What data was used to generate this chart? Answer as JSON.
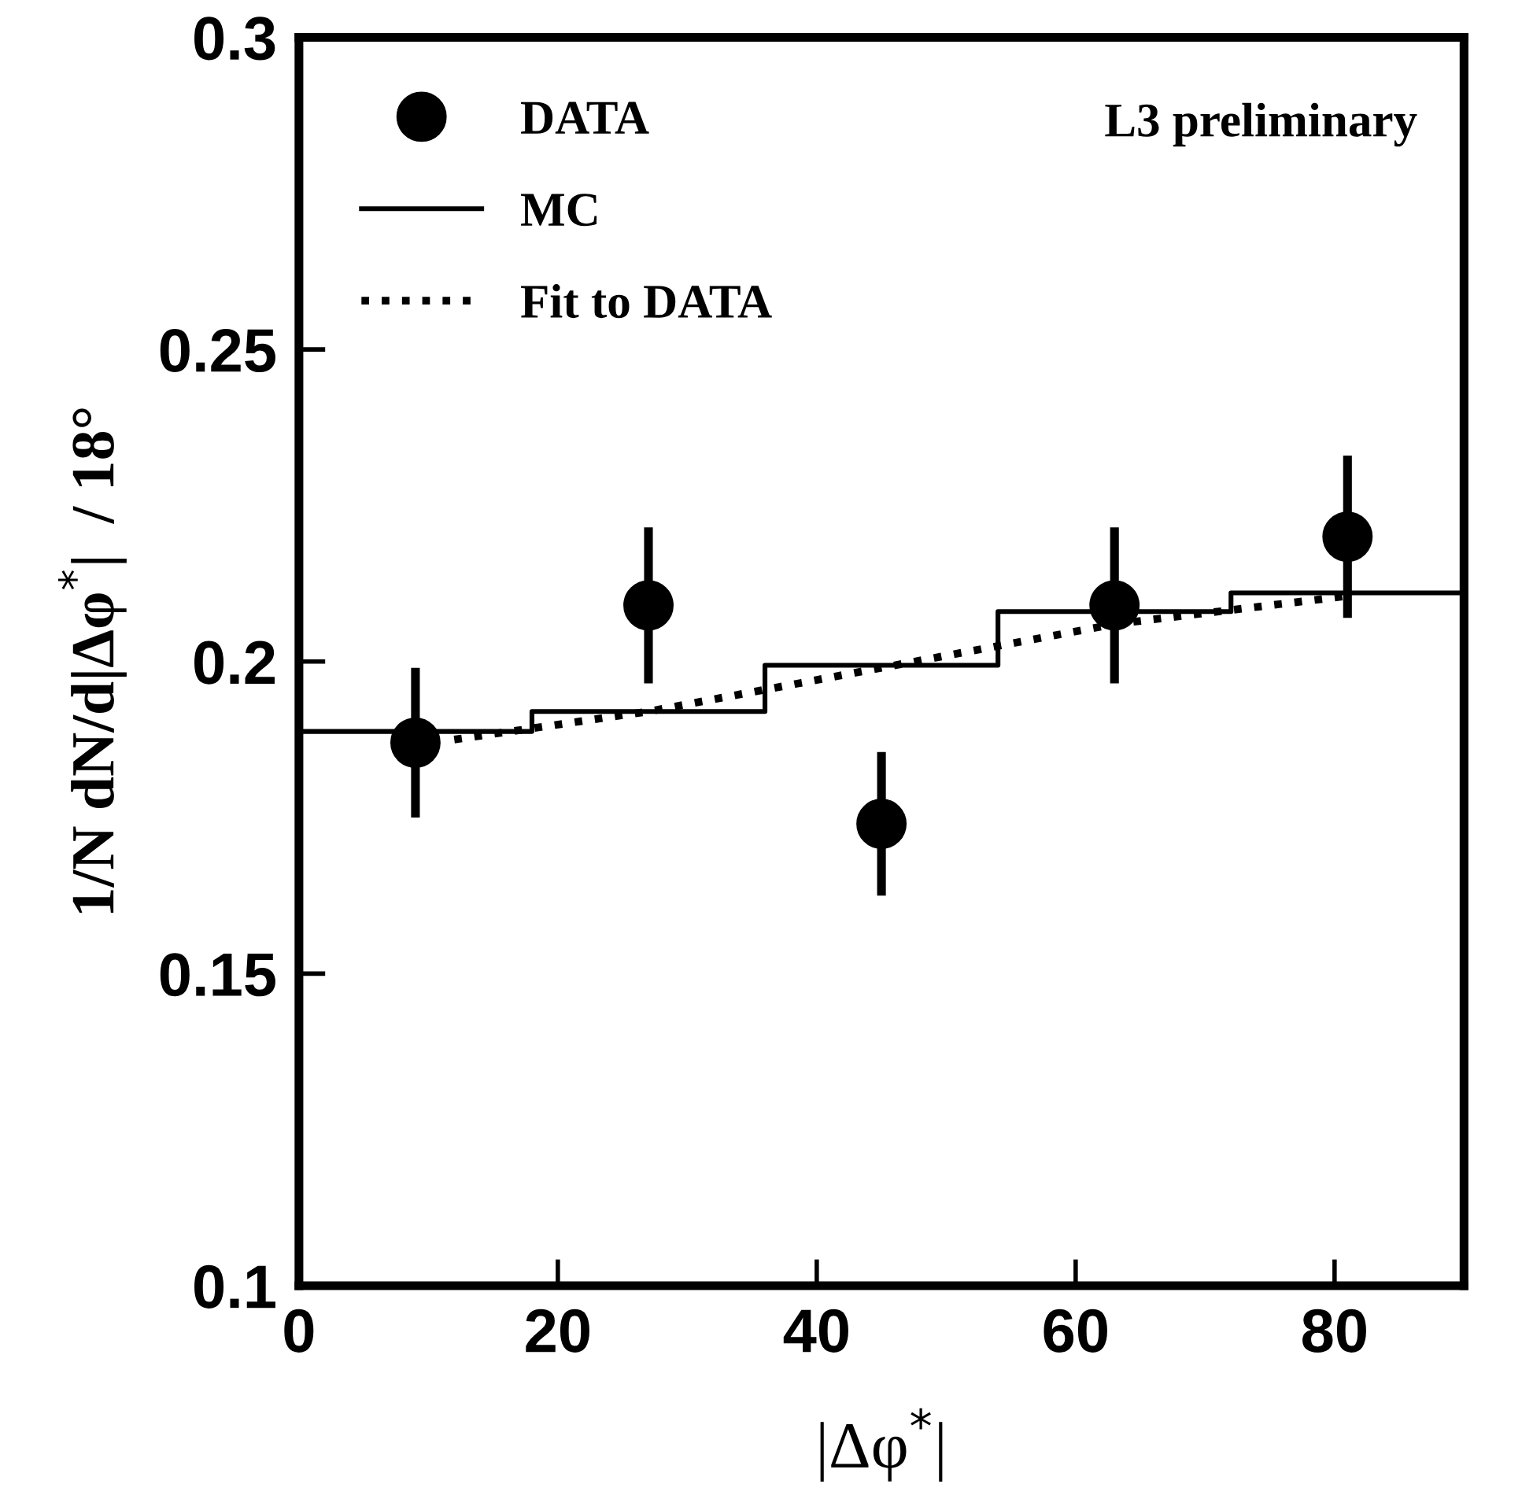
{
  "chart_data": {
    "type": "scatter",
    "xlabel": "|Δφ$^{*}$|",
    "ylabel": "1/N dN/d|Δφ$^{*}$|  / 18°",
    "annotations": [
      "L3 preliminary"
    ],
    "xlim": [
      0,
      90
    ],
    "xticks": [
      0,
      20,
      40,
      60,
      80
    ],
    "ylim": [
      0.1,
      0.3
    ],
    "yticks": [
      0.1,
      0.15,
      0.2,
      0.25,
      0.3
    ],
    "legend": "top left",
    "grid": false,
    "series": [
      {
        "name": "DATA",
        "color": "#000000",
        "marker": "circle",
        "x": [
          9,
          27,
          45,
          63,
          81
        ],
        "values": [
          0.187,
          0.209,
          0.174,
          0.209,
          0.22
        ],
        "errors": [
          0.012,
          0.0125,
          0.0115,
          0.0125,
          0.013
        ]
      },
      {
        "name": "MC",
        "type": "step",
        "color": "#000000",
        "x": [
          0,
          18,
          36,
          54,
          72,
          90
        ],
        "values": [
          0.1888,
          0.192,
          0.1994,
          0.208,
          0.211,
          0.211
        ]
      },
      {
        "name": "Fit to DATA",
        "type": "line",
        "color": "#000000",
        "line_style": "dotted",
        "x": [
          12,
          27,
          45,
          63,
          81
        ],
        "values": [
          0.1875,
          0.192,
          0.199,
          0.206,
          0.2105
        ]
      }
    ]
  }
}
